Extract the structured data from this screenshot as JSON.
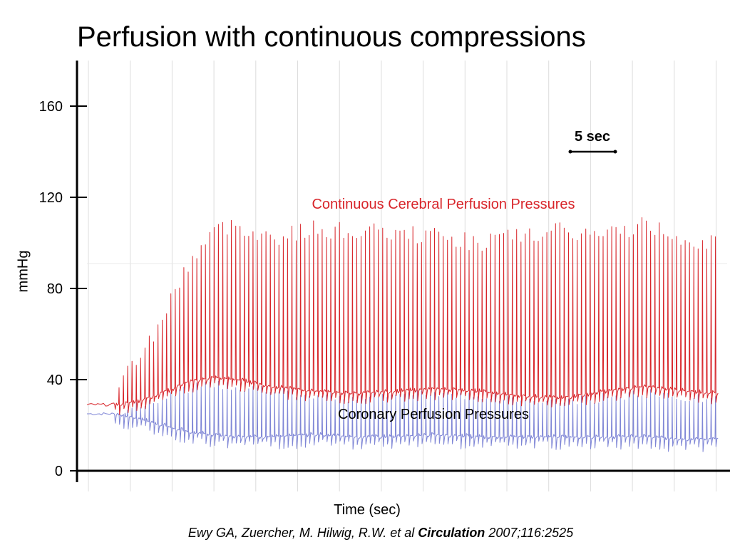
{
  "title": "Perfusion with continuous compressions",
  "citation": {
    "authors": "Ewy GA, Zuercher, M. Hilwig, R.W. et al",
    "journal": "Circulation",
    "ref": "2007;116:2525"
  },
  "scale_bar_label": "5 sec",
  "colors": {
    "cerebral": "#d8252a",
    "coronary": "#7f86d6",
    "grid": "#dcdcdc",
    "axis": "#000000"
  },
  "chart_data": {
    "type": "line",
    "title": "Perfusion with continuous compressions",
    "xlabel": "Time (sec)",
    "ylabel": "mmHg",
    "ylim": [
      0,
      180
    ],
    "yticks": [
      0,
      40,
      80,
      120,
      160
    ],
    "xlim": [
      0,
      76
    ],
    "grid": "vertical",
    "legend": "inline-labels",
    "series": [
      {
        "name": "Continuous Cerebral Perfusion Pressures",
        "color": "#d8252a",
        "x": [
          0,
          3,
          5,
          6,
          8,
          10,
          12,
          15,
          18,
          22,
          27,
          32,
          37,
          42,
          47,
          52,
          57,
          62,
          67,
          72,
          76
        ],
        "baseline": [
          29,
          29,
          30,
          31,
          33,
          36,
          39,
          41,
          40,
          37,
          35,
          34,
          35,
          36,
          35,
          33,
          32,
          35,
          37,
          35,
          34
        ],
        "peaks": [
          29,
          29,
          45,
          50,
          60,
          75,
          90,
          105,
          108,
          102,
          106,
          105,
          104,
          103,
          100,
          103,
          105,
          103,
          108,
          102,
          99
        ]
      },
      {
        "name": "Coronary Perfusion Pressures",
        "color": "#7f86d6",
        "x": [
          0,
          3,
          5,
          6,
          8,
          10,
          12,
          15,
          18,
          22,
          27,
          32,
          37,
          42,
          47,
          52,
          57,
          62,
          67,
          72,
          76
        ],
        "baseline": [
          25,
          25,
          24,
          23,
          21,
          19,
          17,
          16,
          15,
          15,
          16,
          15,
          15,
          16,
          15,
          15,
          15,
          15,
          15,
          14,
          14
        ],
        "peaks": [
          26,
          26,
          27,
          28,
          30,
          33,
          36,
          38,
          37,
          35,
          33,
          32,
          33,
          34,
          33,
          31,
          30,
          32,
          34,
          32,
          31
        ]
      }
    ],
    "annotations": [
      {
        "text": "Continuous Cerebral Perfusion Pressures",
        "color": "#d8252a"
      },
      {
        "text": "Coronary Perfusion Pressures",
        "color": "#000000"
      },
      {
        "text": "5 sec",
        "color": "#000000"
      }
    ]
  }
}
